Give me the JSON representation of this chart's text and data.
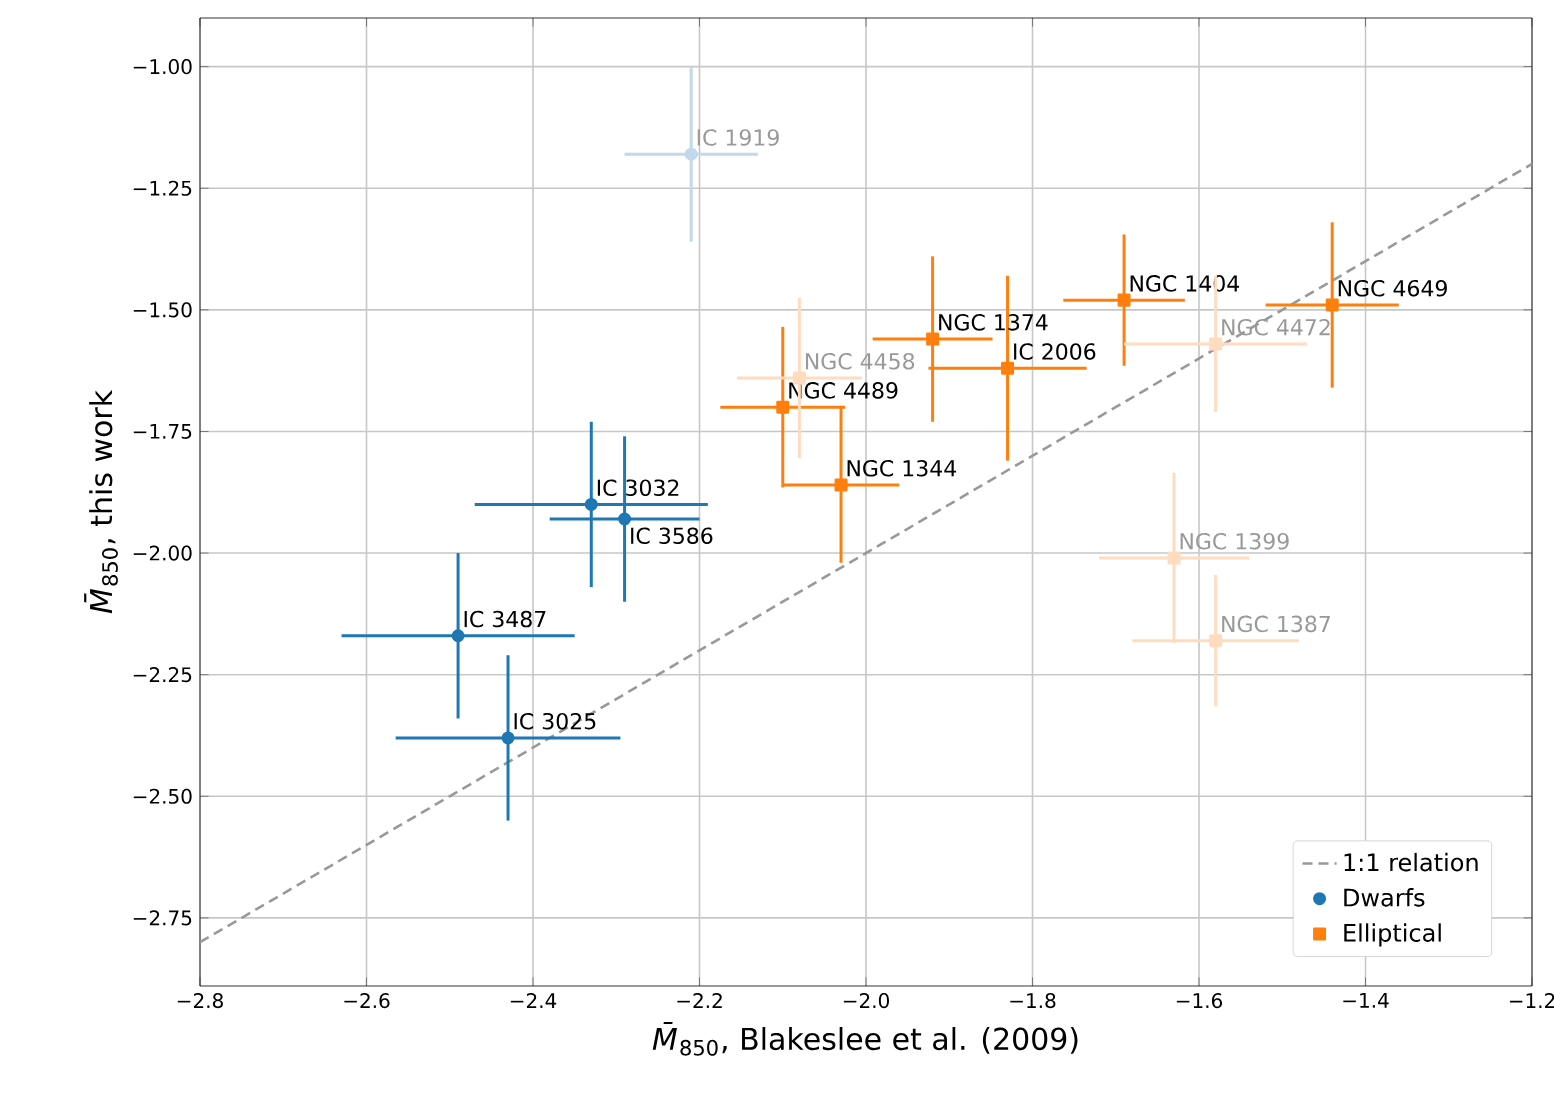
{
  "chart_data": {
    "type": "scatter",
    "xlabel": "*M̄*$_{850}$, Blakeslee et al. (2009)",
    "ylabel": "*M̄*$_{850}$, this work",
    "xlim": [
      -2.8,
      -1.2
    ],
    "ylim": [
      -2.89,
      -0.9
    ],
    "xticks": [
      {
        "value": -2.8,
        "label": "−2.8"
      },
      {
        "value": -2.6,
        "label": "−2.6"
      },
      {
        "value": -2.4,
        "label": "−2.4"
      },
      {
        "value": -2.2,
        "label": "−2.2"
      },
      {
        "value": -2.0,
        "label": "−2.0"
      },
      {
        "value": -1.8,
        "label": "−1.8"
      },
      {
        "value": -1.6,
        "label": "−1.6"
      },
      {
        "value": -1.4,
        "label": "−1.4"
      },
      {
        "value": -1.2,
        "label": "−1.2"
      }
    ],
    "yticks": [
      {
        "value": -2.75,
        "label": "−2.75"
      },
      {
        "value": -2.5,
        "label": "−2.50"
      },
      {
        "value": -2.25,
        "label": "−2.25"
      },
      {
        "value": -2.0,
        "label": "−2.00"
      },
      {
        "value": -1.75,
        "label": "−1.75"
      },
      {
        "value": -1.5,
        "label": "−1.50"
      },
      {
        "value": -1.25,
        "label": "−1.25"
      },
      {
        "value": -1.0,
        "label": "−1.00"
      }
    ],
    "grid": true,
    "legend": "bottom right",
    "series": [
      {
        "name": "1:1 relation",
        "type": "line",
        "line_style": "dashed",
        "marker": "none",
        "color": "#999999",
        "x": [
          -2.8,
          -1.2
        ],
        "values": [
          -2.8,
          -1.2
        ]
      },
      {
        "name": "Dwarfs",
        "marker": "circle",
        "color": "#1f77b4",
        "x": [
          -2.49,
          -2.43,
          -2.33,
          -2.29
        ],
        "values": [
          -2.17,
          -2.38,
          -1.9,
          -1.93
        ],
        "xerrors": [
          0.14,
          0.135,
          0.14,
          0.09
        ],
        "errors": [
          0.17,
          0.17,
          0.17,
          0.17
        ],
        "value_labels": [
          "IC 3487",
          "IC 3025",
          "IC 3032",
          "IC 3586"
        ]
      },
      {
        "name": "Elliptical",
        "marker": "square",
        "color": "#ff7f0e",
        "x": [
          -2.1,
          -2.03,
          -1.92,
          -1.83,
          -1.69,
          -1.44
        ],
        "values": [
          -1.7,
          -1.86,
          -1.56,
          -1.62,
          -1.48,
          -1.49
        ],
        "xerrors": [
          0.075,
          0.07,
          0.072,
          0.095,
          0.073,
          0.08
        ],
        "errors": [
          0.165,
          0.16,
          0.17,
          0.19,
          0.135,
          0.17
        ],
        "value_labels": [
          "NGC 4489",
          "NGC 1344",
          "NGC 1374",
          "IC 2006",
          "NGC 1404",
          "NGC 4649"
        ]
      },
      {
        "marker": "circle",
        "color": "#c3d8ea",
        "x": [
          -2.21
        ],
        "values": [
          -1.18
        ],
        "xerrors": [
          0.08
        ],
        "errors": [
          0.18
        ],
        "value_labels": [
          "IC 1919"
        ]
      },
      {
        "marker": "square",
        "color": "#ffdcbf",
        "x": [
          -2.08,
          -1.58,
          -1.63,
          -1.58
        ],
        "values": [
          -1.64,
          -1.57,
          -2.01,
          -2.18
        ],
        "xerrors": [
          0.075,
          0.11,
          0.09,
          0.1
        ],
        "errors": [
          0.165,
          0.14,
          0.175,
          0.135
        ],
        "value_labels": [
          "NGC 4458",
          "NGC 4472",
          "NGC 1399",
          "NGC 1387"
        ]
      }
    ]
  }
}
